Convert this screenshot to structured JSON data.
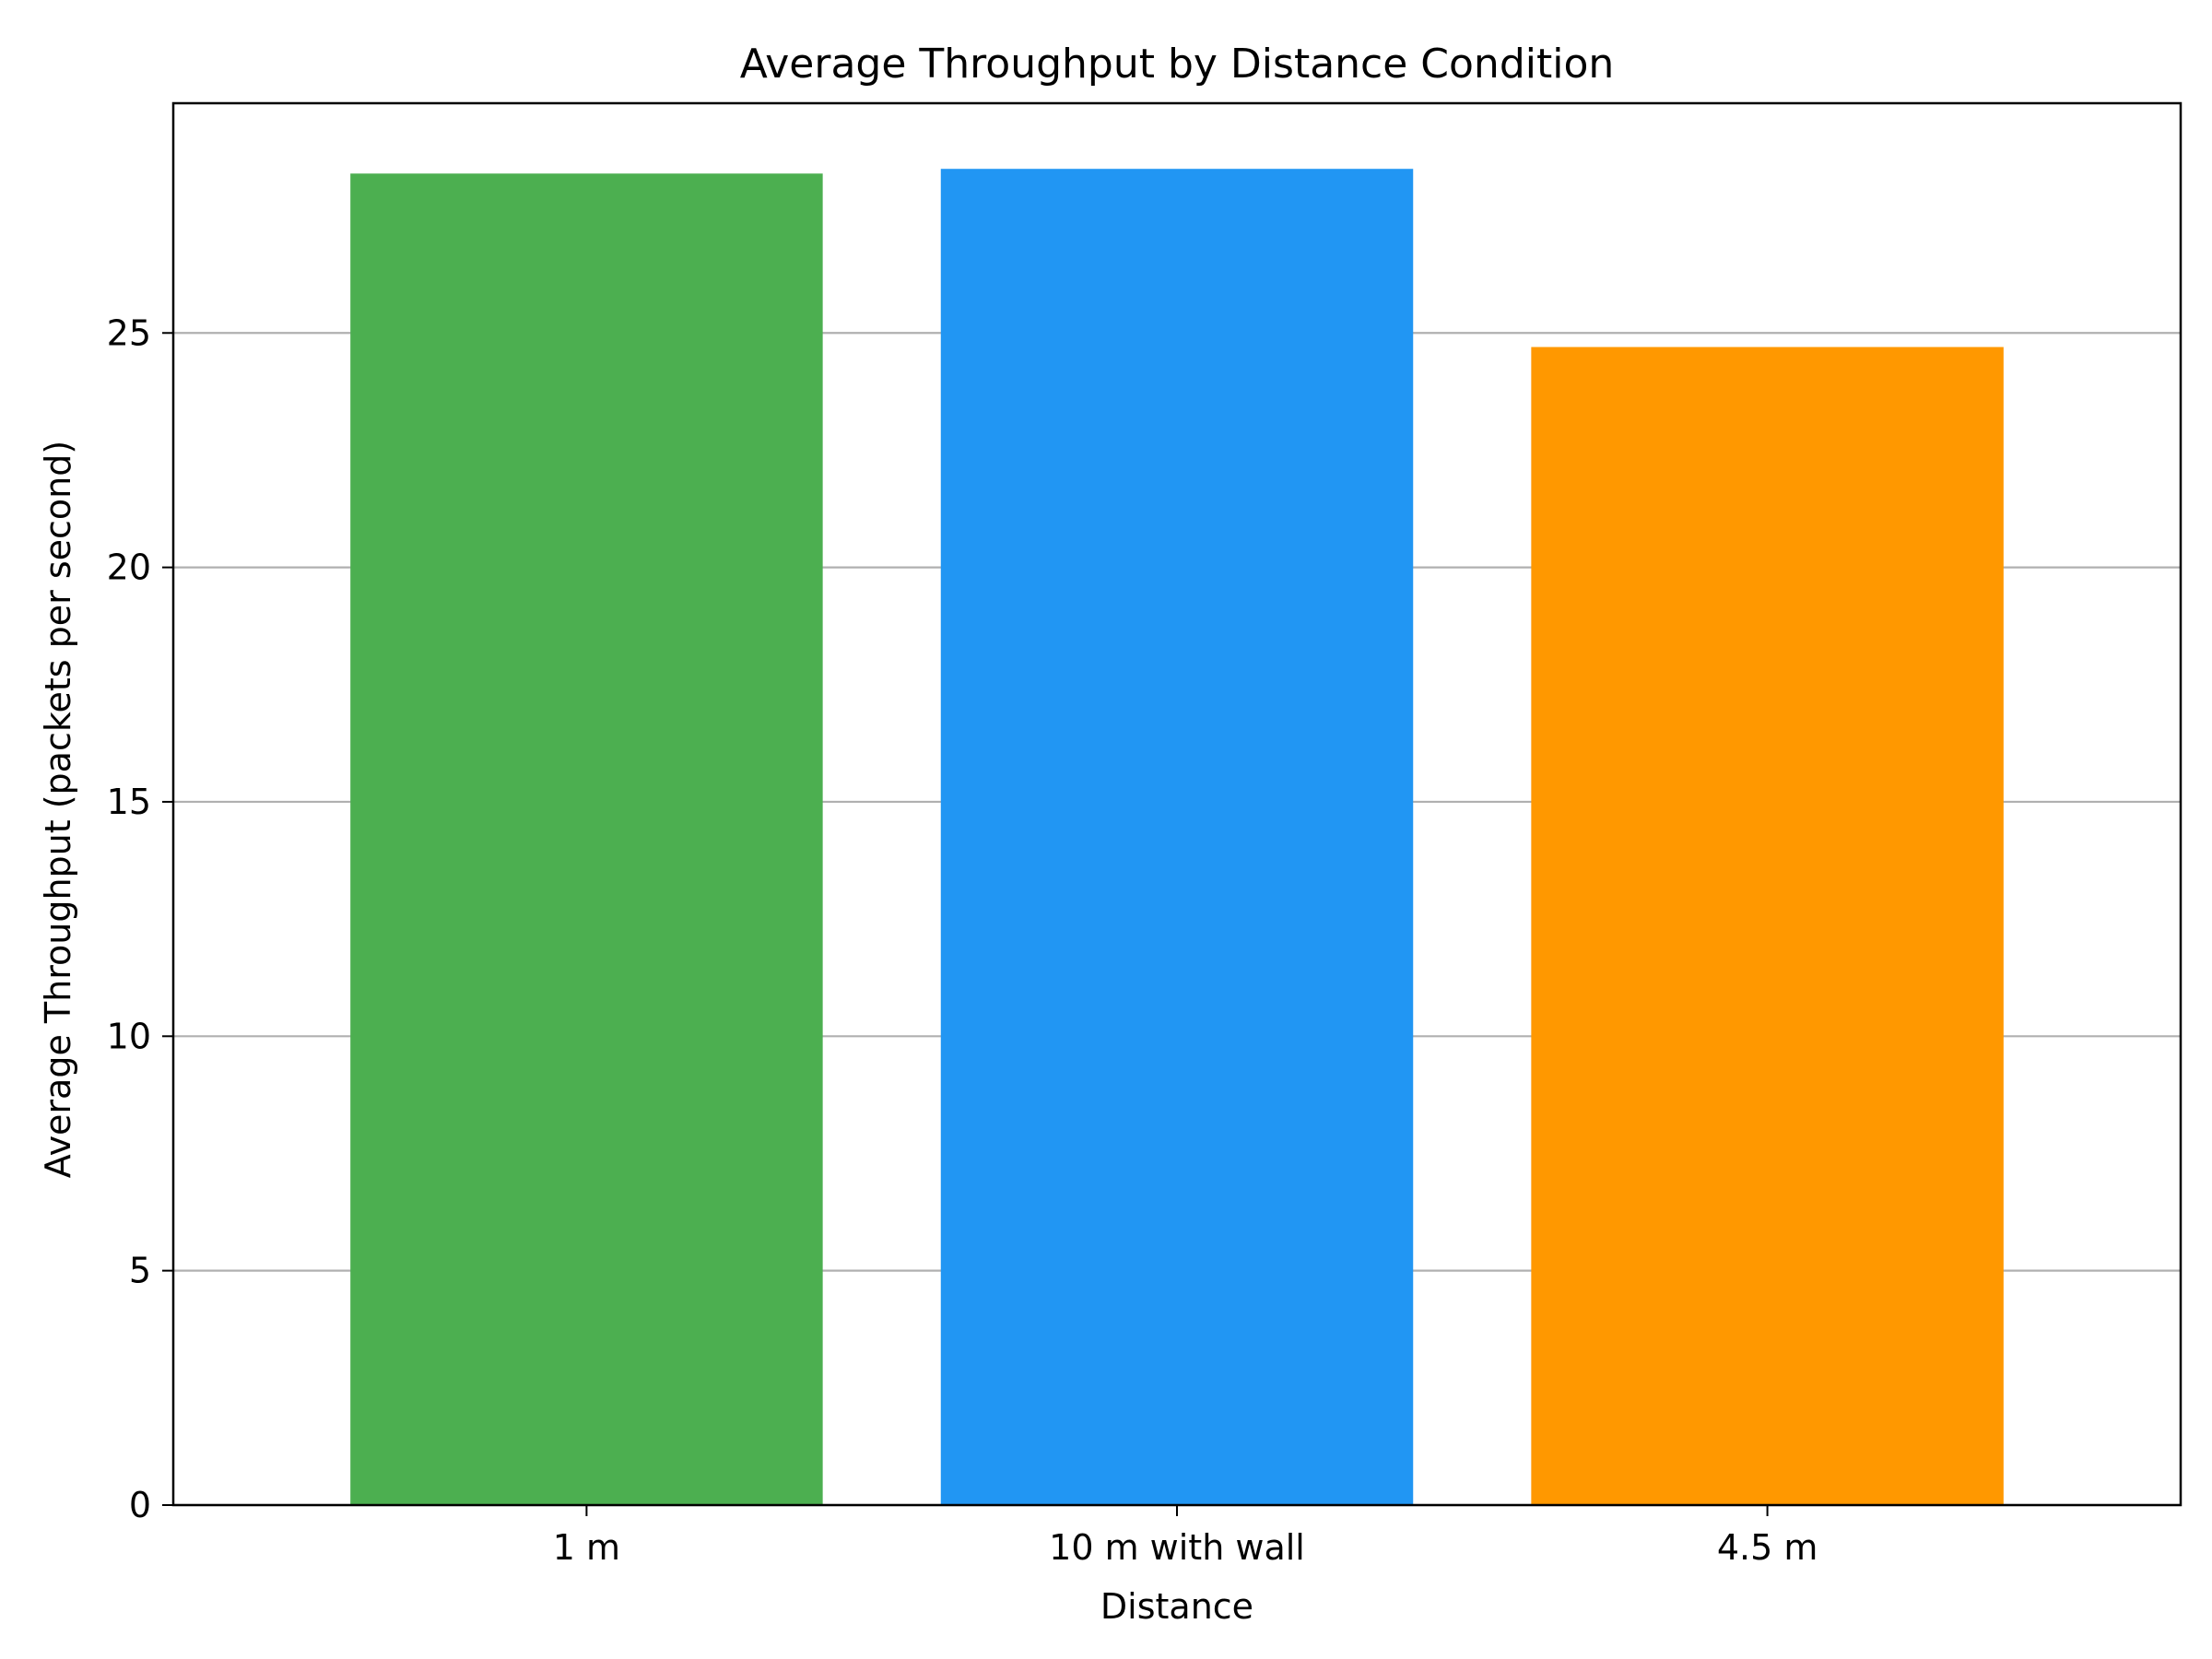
{
  "chart_data": {
    "type": "bar",
    "title": "Average Throughput by Distance Condition",
    "xlabel": "Distance",
    "ylabel": "Average Throughput (packets per second)",
    "categories": [
      "1 m",
      "10 m with wall",
      "4.5 m"
    ],
    "values": [
      28.4,
      28.5,
      24.7
    ],
    "colors": [
      "#4caf50",
      "#2196f3",
      "#ff9800"
    ],
    "ylim": [
      0,
      29.9
    ],
    "yticks": [
      0,
      5,
      10,
      15,
      20,
      25
    ],
    "grid": "horizontal",
    "grid_color": "#b0b0b0"
  }
}
